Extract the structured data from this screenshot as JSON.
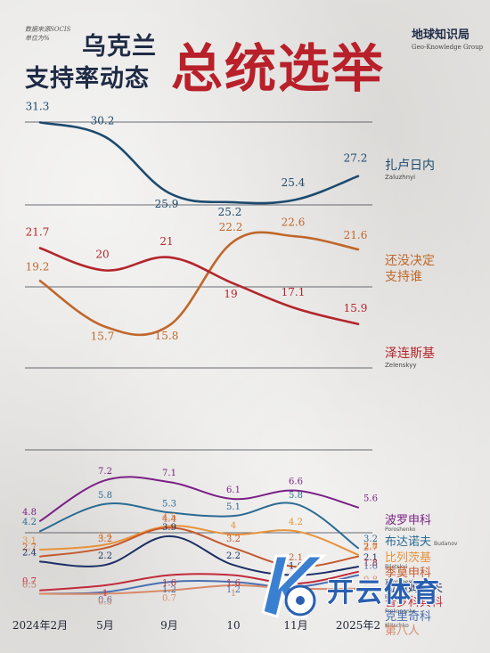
{
  "header": {
    "source_line1": "数据来源SOCIS",
    "source_line2": "单位为%",
    "title_line1": "乌克兰",
    "title_line2": "支持率动态",
    "title_main": "总统选举",
    "brand_cn": "地球知识局",
    "brand_en": "Geo-Knowledge Group"
  },
  "watermark": {
    "text": "开云体育",
    "icon": "ball-logo-icon"
  },
  "chart_data": [
    {
      "type": "line",
      "title": "",
      "categories": [
        "2024年2月",
        "5月",
        "9月",
        "10月",
        "11月",
        "2025年2月"
      ],
      "series": [
        {
          "name": "扎卢日内",
          "name_en": "Zaluzhnyi",
          "color": "#1d4a6e",
          "values": [
            31.3,
            30.2,
            25.9,
            25.2,
            25.4,
            27.2
          ]
        },
        {
          "name": "还没决定支持谁",
          "name_en": "",
          "color": "#c0672b",
          "values": [
            19.2,
            15.7,
            15.8,
            22.2,
            22.6,
            21.6
          ]
        },
        {
          "name": "泽连斯基",
          "name_en": "Zelenskyy",
          "color": "#b3262c",
          "values": [
            21.7,
            20,
            21,
            19,
            17.1,
            15.9
          ]
        }
      ]
    },
    {
      "type": "line",
      "title": "",
      "categories": [
        "2024年2月",
        "5月",
        "9月",
        "10月",
        "11月",
        "2025年2月"
      ],
      "x_tick_labels": [
        "2024年2月",
        "5月",
        "9月",
        "10",
        "11月",
        "2025年2"
      ],
      "series": [
        {
          "name": "波罗申科",
          "name_en": "Poroshenko",
          "color": "#7a2185",
          "values": [
            4.8,
            7.2,
            7.1,
            6.1,
            6.6,
            5.6
          ]
        },
        {
          "name": "布达诺夫",
          "name_en": "Budanov",
          "color": "#2a6b94",
          "values": [
            4.2,
            5.8,
            5.3,
            5.1,
            5.8,
            3.2
          ]
        },
        {
          "name": "比列茨基",
          "name_en": "Biletskyi",
          "color": "#e8923a",
          "values": [
            3.1,
            3.4,
            4.5,
            4,
            4.2,
            2.8
          ]
        },
        {
          "name": "季莫申科",
          "name_en": "Tymoshenko",
          "color": "#c5592e",
          "values": [
            2.7,
            3.2,
            4.4,
            3.2,
            2.1,
            2.7
          ]
        },
        {
          "name": "拉祖姆科夫",
          "name_en": "Razumkov",
          "color": "#1b2f66",
          "values": [
            2.4,
            2.2,
            3.9,
            2.2,
            1.6,
            2.1
          ]
        },
        {
          "name": "普罗科宾科",
          "name_en": "Prokopenko",
          "color": "#c22a3b",
          "values": [
            0.7,
            1.0,
            1.6,
            1.6,
            1.1,
            1.8
          ]
        },
        {
          "name": "克里奇科",
          "name_en": "Klitschko",
          "color": "#4a6fb0",
          "values": [
            0.5,
            0.6,
            1.2,
            1.2,
            0.9,
            1.6
          ]
        },
        {
          "name": "第八人",
          "name_en": "",
          "color": "#d88a6a",
          "values": [
            0.5,
            0.5,
            0.7,
            1.0,
            0.8,
            0.8
          ]
        }
      ]
    }
  ]
}
